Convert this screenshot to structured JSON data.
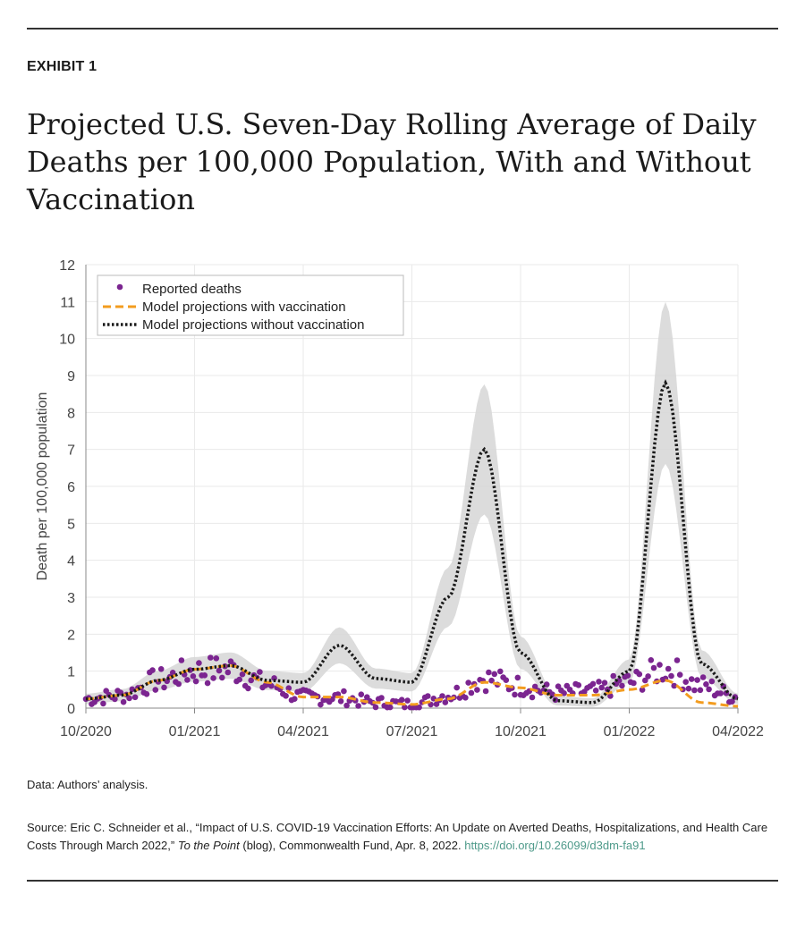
{
  "header": {
    "exhibit_label": "EXHIBIT 1",
    "title": "Projected U.S. Seven-Day Rolling Average of Daily Deaths per 100,000 Population, With and Without Vaccination"
  },
  "footer": {
    "data_note": "Data: Authors’ analysis.",
    "source_prefix": "Source: Eric C. Schneider et al., “Impact of U.S. COVID-19 Vaccination Efforts: An Update on Averted Deaths, Hospitalizations, and Health Care Costs Through March 2022,” ",
    "source_italic": "To the Point",
    "source_suffix": " (blog), Commonwealth Fund, Apr. 8, 2022. ",
    "source_doi": "https://doi.org/10.26099/d3dm-fa91"
  },
  "colors": {
    "reported": "#7b2590",
    "with_vaccination": "#f39c1f",
    "without_vaccination": "#1a1a1a",
    "band": "#d6d6d6",
    "grid": "#eaeaea"
  },
  "chart_data": {
    "type": "line",
    "ylabel": "Death per 100,000 population",
    "xlabel": "",
    "ylim": [
      0,
      12
    ],
    "yticks": [
      0,
      1,
      2,
      3,
      4,
      5,
      6,
      7,
      8,
      9,
      10,
      11,
      12
    ],
    "x_tick_labels": [
      "10/2020",
      "01/2021",
      "04/2021",
      "07/2021",
      "10/2021",
      "01/2022",
      "04/2022"
    ],
    "x_range": [
      "2020-10",
      "2022-04"
    ],
    "grid": true,
    "legend_position": "top-left",
    "series": [
      {
        "name": "Reported deaths",
        "style": "scatter",
        "x": [
          "2020-10",
          "2020-11",
          "2020-12",
          "2021-01",
          "2021-02",
          "2021-03",
          "2021-04",
          "2021-05",
          "2021-06",
          "2021-07",
          "2021-08",
          "2021-09",
          "2021-10",
          "2021-11",
          "2021-12",
          "2022-01",
          "2022-02",
          "2022-03",
          "2022-04"
        ],
        "y": [
          0.25,
          0.35,
          0.75,
          1.0,
          1.05,
          0.65,
          0.3,
          0.28,
          0.15,
          0.1,
          0.35,
          0.8,
          0.6,
          0.4,
          0.45,
          0.7,
          1.05,
          0.6,
          0.3
        ]
      },
      {
        "name": "Model projections with vaccination",
        "style": "dashed",
        "x": [
          "2020-10",
          "2020-11",
          "2020-12",
          "2021-01",
          "2021-02",
          "2021-03",
          "2021-04",
          "2021-05",
          "2021-06",
          "2021-07",
          "2021-08",
          "2021-09",
          "2021-10",
          "2021-11",
          "2021-12",
          "2022-01",
          "2022-02",
          "2022-03",
          "2022-04"
        ],
        "y": [
          0.25,
          0.35,
          0.75,
          1.05,
          1.15,
          0.7,
          0.3,
          0.3,
          0.15,
          0.1,
          0.25,
          0.7,
          0.55,
          0.35,
          0.35,
          0.5,
          0.75,
          0.15,
          0.05
        ]
      },
      {
        "name": "Model projections without vaccination",
        "style": "dotted",
        "x": [
          "2020-10",
          "2020-11",
          "2020-12",
          "2021-01",
          "2021-02",
          "2021-03",
          "2021-04",
          "2021-05",
          "2021-06",
          "2021-07",
          "2021-08",
          "2021-09",
          "2021-10",
          "2021-11",
          "2021-12",
          "2022-01",
          "2022-02",
          "2022-03",
          "2022-04"
        ],
        "y": [
          0.25,
          0.35,
          0.75,
          1.05,
          1.15,
          0.75,
          0.7,
          1.7,
          0.8,
          0.7,
          3.0,
          7.0,
          1.5,
          0.2,
          0.15,
          1.0,
          8.8,
          1.2,
          0.25
        ]
      }
    ]
  }
}
